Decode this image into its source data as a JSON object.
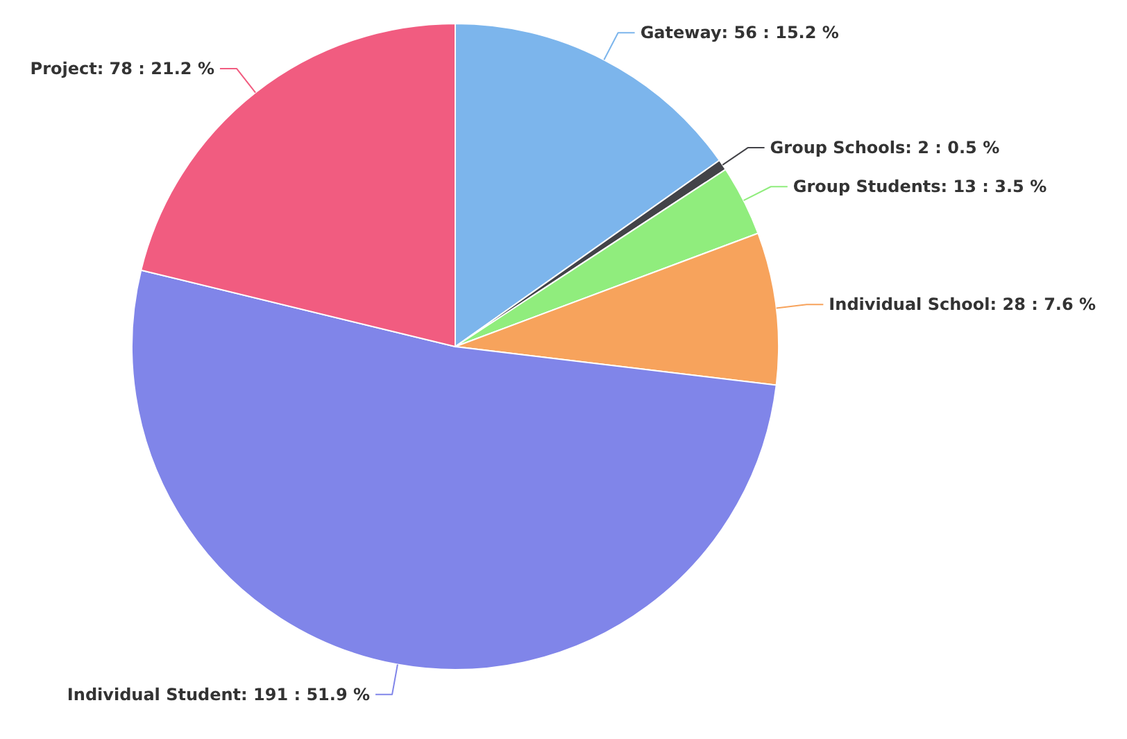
{
  "chart_data": {
    "type": "pie",
    "categories": [
      "Gateway",
      "Group Schools",
      "Group Students",
      "Individual School",
      "Individual Student",
      "Project"
    ],
    "values": [
      56,
      2,
      13,
      28,
      191,
      78
    ],
    "colors": [
      "#7cb5ec",
      "#434348",
      "#90ed7d",
      "#f7a35c",
      "#8085e9",
      "#f15c80"
    ],
    "value_labels": [
      "56 : 15.2 %",
      "2 : 0.5 %",
      "13 : 3.5 %",
      "28 : 7.6 %",
      "191 : 51.9 %",
      "78 : 21.2 %"
    ]
  }
}
